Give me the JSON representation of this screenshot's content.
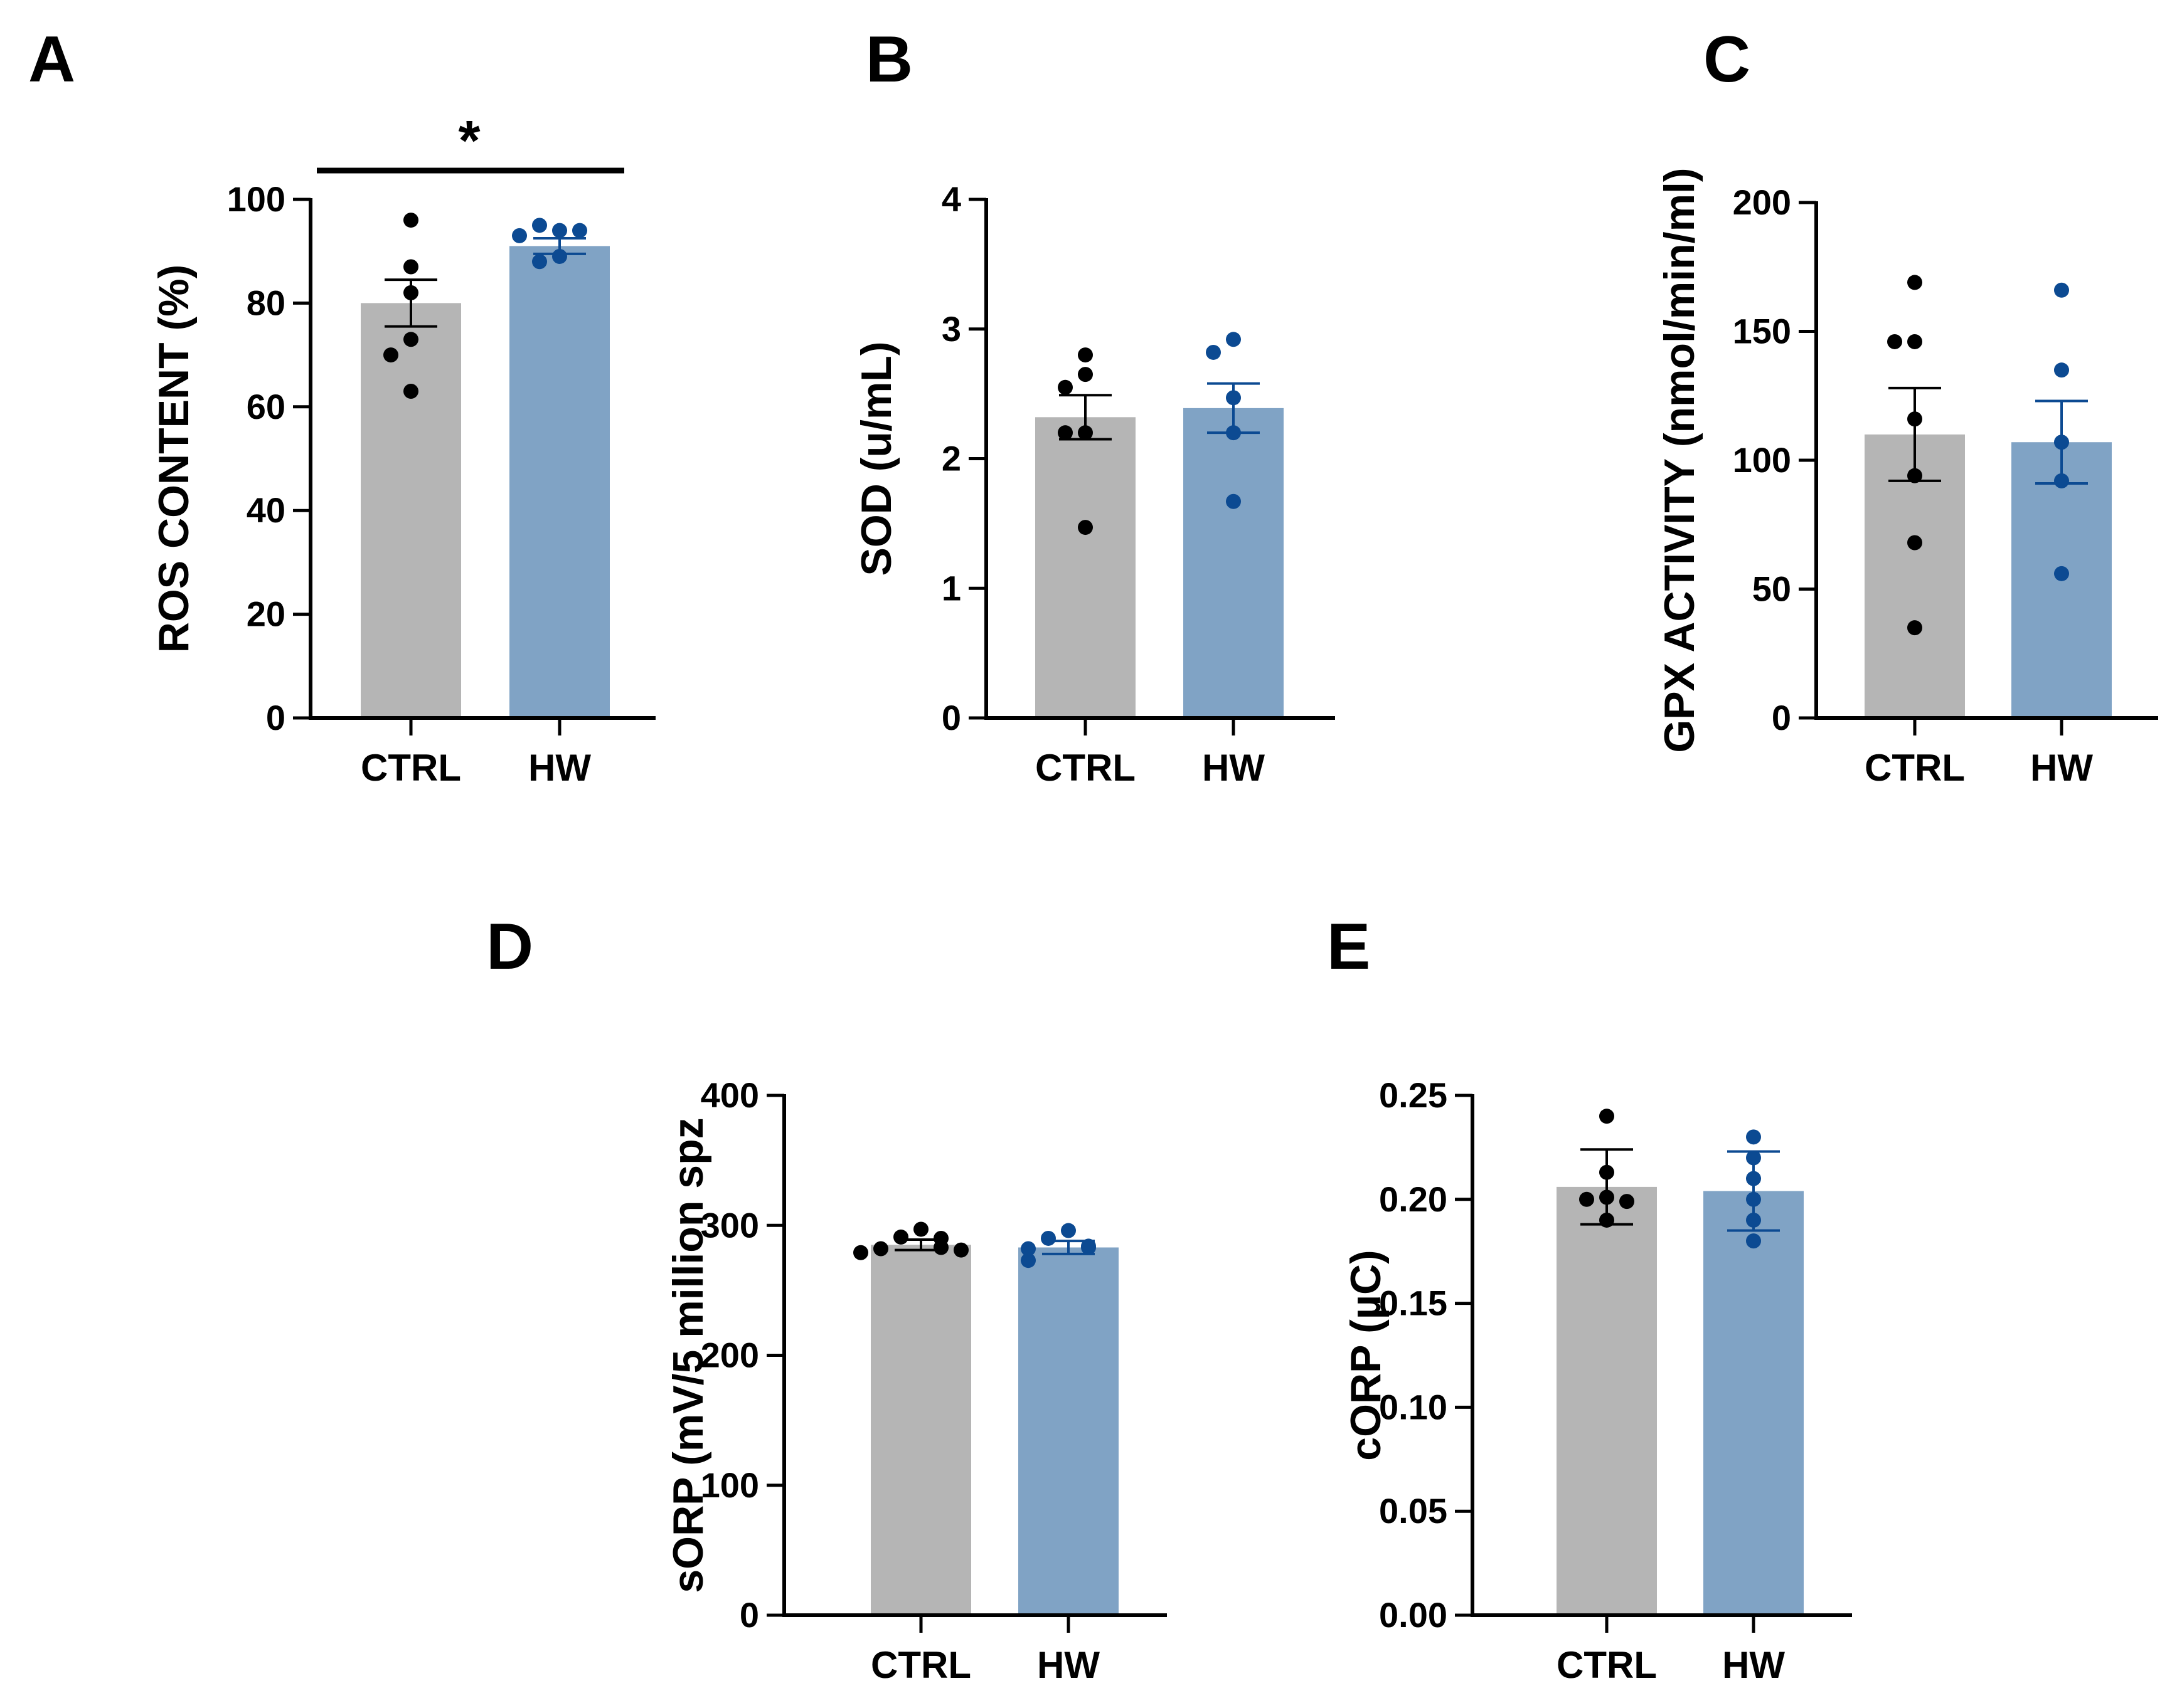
{
  "colors": {
    "ctrl_bar": "#b5b5b5",
    "hw_bar": "#80a3c5",
    "ctrl_point": "#000000",
    "hw_point": "#0c4a92",
    "axis": "#000000"
  },
  "chart_data": [
    {
      "panel": "A",
      "type": "bar",
      "ylabel": "ROS CONTENT (%)",
      "ylim": [
        0,
        100
      ],
      "yticks": [
        0,
        20,
        40,
        60,
        80,
        100
      ],
      "categories": [
        "CTRL",
        "HW"
      ],
      "significance": "*",
      "series": [
        {
          "name": "CTRL",
          "mean": 80,
          "sem": 4.5,
          "points": [
            96,
            87,
            82,
            73,
            70,
            63
          ]
        },
        {
          "name": "HW",
          "mean": 91,
          "sem": 1.5,
          "points": [
            94,
            95,
            94,
            93,
            89,
            88
          ]
        }
      ]
    },
    {
      "panel": "B",
      "type": "bar",
      "ylabel": "SOD (u/mL)",
      "ylim": [
        0,
        4
      ],
      "yticks": [
        0,
        1,
        2,
        3,
        4
      ],
      "categories": [
        "CTRL",
        "HW"
      ],
      "series": [
        {
          "name": "CTRL",
          "mean": 2.32,
          "sem": 0.17,
          "points": [
            2.8,
            2.65,
            2.55,
            2.2,
            2.2,
            1.47
          ]
        },
        {
          "name": "HW",
          "mean": 2.39,
          "sem": 0.19,
          "points": [
            2.92,
            2.82,
            2.47,
            2.2,
            1.67
          ]
        }
      ]
    },
    {
      "panel": "C",
      "type": "bar",
      "ylabel": "GPX ACTIVITY (nmol/min/ml)",
      "ylim": [
        0,
        200
      ],
      "yticks": [
        0,
        50,
        100,
        150,
        200
      ],
      "categories": [
        "CTRL",
        "HW"
      ],
      "series": [
        {
          "name": "CTRL",
          "mean": 110,
          "sem": 18,
          "points": [
            169,
            146,
            146,
            116,
            94,
            68,
            35
          ]
        },
        {
          "name": "HW",
          "mean": 107,
          "sem": 16,
          "points": [
            166,
            135,
            107,
            92,
            56
          ]
        }
      ]
    },
    {
      "panel": "D",
      "type": "bar",
      "ylabel": "sORP (mV/5 million spz",
      "ylim": [
        0,
        400
      ],
      "yticks": [
        0,
        100,
        200,
        300,
        400
      ],
      "categories": [
        "CTRL",
        "HW"
      ],
      "series": [
        {
          "name": "CTRL",
          "mean": 285,
          "sem": 4,
          "points": [
            297,
            291,
            290,
            283,
            282,
            281,
            279
          ]
        },
        {
          "name": "HW",
          "mean": 283,
          "sem": 5,
          "points": [
            296,
            290,
            284,
            283,
            282,
            273
          ]
        }
      ]
    },
    {
      "panel": "E",
      "type": "bar",
      "ylabel": "cORP (µC)",
      "ylim": [
        0,
        0.25
      ],
      "yticks": [
        "0.00",
        "0.05",
        "0.10",
        "0.15",
        "0.20",
        "0.25"
      ],
      "categories": [
        "CTRL",
        "HW"
      ],
      "series": [
        {
          "name": "CTRL",
          "mean": 0.206,
          "sem": 0.018,
          "points": [
            0.24,
            0.213,
            0.201,
            0.2,
            0.199,
            0.19
          ]
        },
        {
          "name": "HW",
          "mean": 0.204,
          "sem": 0.019,
          "points": [
            0.23,
            0.22,
            0.21,
            0.2,
            0.19,
            0.18
          ]
        }
      ]
    }
  ]
}
